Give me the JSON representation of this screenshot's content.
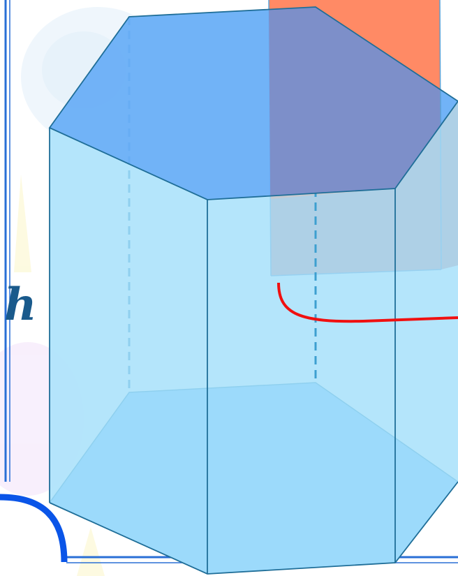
{
  "figure": {
    "height_label": "h"
  },
  "colors": {
    "prism_side_face": "#aee3fb",
    "prism_top_face": "#6aaef6",
    "prism_bottom_face": "#6cc0fb",
    "prism_edge": "#1f6e98",
    "hidden_edge": "#3d9fd0",
    "plane_orange": "#ff8a65",
    "plane_gray": "#ab9fb0",
    "plane_purple_overlap": "#7d8fc9",
    "section_curve": "#f01010",
    "frame_border": "#2a6fd6",
    "frame_corner_curve": "#0a55e8"
  },
  "background": {
    "decorations": [
      "swirl-blue",
      "swirl-pink",
      "yellow-sparkle"
    ]
  }
}
